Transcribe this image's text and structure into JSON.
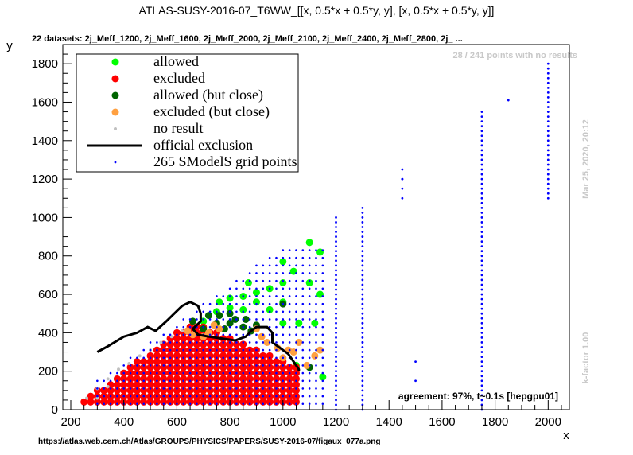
{
  "chart_data": {
    "type": "scatter",
    "title": "ATLAS-SUSY-2016-07_T6WW_[[x, 0.5*x + 0.5*y, y], [x, 0.5*x + 0.5*y, y]]",
    "subtitle": "22 datasets: 2j_Meff_1200, 2j_Meff_1600, 2j_Meff_2000, 2j_Meff_2100, 2j_Meff_2400, 2j_Meff_2800, 2j_ ...",
    "xlabel": "x",
    "ylabel": "y",
    "xlim": [
      170,
      2080
    ],
    "ylim": [
      0,
      1900
    ],
    "xticks": [
      200,
      400,
      600,
      800,
      1000,
      1200,
      1400,
      1600,
      1800,
      2000
    ],
    "yticks": [
      0,
      200,
      400,
      600,
      800,
      1000,
      1200,
      1400,
      1600,
      1800
    ],
    "no_result_note": "28 / 241 points with no results",
    "timestamp": "Mar 25, 2020, 20:12",
    "kfactor": "k-factor 1.00",
    "agreement": "agreement: 97%, t~0.1s [hepgpu01]",
    "source_url": "https://atlas.web.cern.ch/Atlas/GROUPS/PHYSICS/PAPERS/SUSY-2016-07/figaux_077a.png",
    "legend": [
      {
        "label": "allowed",
        "color": "#00ff00",
        "marker": "dot"
      },
      {
        "label": "excluded",
        "color": "#ff0000",
        "marker": "dot"
      },
      {
        "label": "allowed (but close)",
        "color": "#006400",
        "marker": "dot"
      },
      {
        "label": "excluded (but close)",
        "color": "#ffa040",
        "marker": "dot"
      },
      {
        "label": "no result",
        "color": "#c0c0c0",
        "marker": "smalldot"
      },
      {
        "label": "official exclusion",
        "color": "#000000",
        "marker": "line"
      },
      {
        "label": "265 SModelS grid points",
        "color": "#0000ff",
        "marker": "tiny"
      }
    ],
    "series": [
      {
        "name": "allowed",
        "color": "#00ff00",
        "points": [
          [
            700,
            460
          ],
          [
            750,
            510
          ],
          [
            760,
            560
          ],
          [
            800,
            530
          ],
          [
            800,
            580
          ],
          [
            850,
            520
          ],
          [
            850,
            590
          ],
          [
            870,
            660
          ],
          [
            900,
            560
          ],
          [
            900,
            610
          ],
          [
            950,
            630
          ],
          [
            1000,
            770
          ],
          [
            1000,
            660
          ],
          [
            1000,
            560
          ],
          [
            1040,
            720
          ],
          [
            1060,
            450
          ],
          [
            1100,
            870
          ],
          [
            1100,
            660
          ],
          [
            1120,
            450
          ],
          [
            1140,
            820
          ],
          [
            1140,
            600
          ],
          [
            1150,
            170
          ],
          [
            1050,
            230
          ],
          [
            1000,
            450
          ],
          [
            950,
            520
          ]
        ]
      },
      {
        "name": "excluded",
        "color": "#ff0000",
        "points": []
      },
      {
        "name": "allowed (but close)",
        "color": "#006400",
        "points": [
          [
            660,
            460
          ],
          [
            700,
            420
          ],
          [
            720,
            490
          ],
          [
            750,
            450
          ],
          [
            760,
            490
          ],
          [
            780,
            420
          ],
          [
            800,
            450
          ],
          [
            800,
            500
          ],
          [
            820,
            470
          ],
          [
            850,
            430
          ],
          [
            860,
            470
          ],
          [
            880,
            410
          ],
          [
            900,
            440
          ],
          [
            1000,
            550
          ],
          [
            1100,
            220
          ]
        ]
      },
      {
        "name": "excluded (but close)",
        "color": "#ffa040",
        "points": [
          [
            640,
            410
          ],
          [
            660,
            390
          ],
          [
            700,
            380
          ],
          [
            720,
            400
          ],
          [
            740,
            440
          ],
          [
            760,
            420
          ],
          [
            900,
            420
          ],
          [
            920,
            380
          ],
          [
            940,
            350
          ],
          [
            980,
            320
          ],
          [
            1000,
            270
          ],
          [
            1020,
            310
          ],
          [
            1040,
            300
          ],
          [
            1060,
            350
          ],
          [
            1090,
            230
          ],
          [
            1120,
            280
          ],
          [
            1140,
            310
          ]
        ]
      },
      {
        "name": "no result",
        "color": "#c0c0c0",
        "points": [
          [
            260,
            60
          ],
          [
            300,
            110
          ],
          [
            300,
            60
          ],
          [
            340,
            120
          ],
          [
            340,
            160
          ],
          [
            380,
            210
          ],
          [
            420,
            240
          ],
          [
            460,
            280
          ],
          [
            500,
            310
          ],
          [
            540,
            350
          ],
          [
            580,
            380
          ],
          [
            620,
            410
          ]
        ]
      },
      {
        "name": "official exclusion",
        "color": "#000000",
        "points": [
          [
            300,
            300
          ],
          [
            340,
            330
          ],
          [
            400,
            380
          ],
          [
            450,
            400
          ],
          [
            490,
            430
          ],
          [
            520,
            410
          ],
          [
            560,
            460
          ],
          [
            590,
            500
          ],
          [
            620,
            540
          ],
          [
            650,
            560
          ],
          [
            680,
            540
          ],
          [
            690,
            500
          ],
          [
            690,
            460
          ],
          [
            660,
            420
          ],
          [
            680,
            390
          ],
          [
            720,
            380
          ],
          [
            770,
            370
          ],
          [
            820,
            360
          ],
          [
            860,
            380
          ],
          [
            880,
            410
          ],
          [
            900,
            430
          ],
          [
            940,
            430
          ],
          [
            960,
            400
          ],
          [
            960,
            350
          ],
          [
            990,
            320
          ],
          [
            1020,
            290
          ],
          [
            1040,
            250
          ],
          [
            1060,
            210
          ],
          [
            1060,
            200
          ]
        ]
      }
    ],
    "grid_columns": [
      {
        "x": 1200,
        "y_min": 0,
        "y_max": 1000,
        "step": 25
      },
      {
        "x": 1300,
        "y_min": 0,
        "y_max": 1050,
        "step": 25
      },
      {
        "x": 1450,
        "y_min": 1100,
        "y_max": 1250,
        "step": 50
      },
      {
        "x": 1500,
        "y_min": 150,
        "y_max": 250,
        "step": 100
      },
      {
        "x": 1750,
        "y_min": 0,
        "y_max": 1550,
        "step": 25
      },
      {
        "x": 2000,
        "y_min": 1100,
        "y_max": 1800,
        "step": 25
      }
    ],
    "grid_extra_points": [
      [
        1850,
        1610
      ],
      [
        1450,
        1200
      ],
      [
        1300,
        450
      ],
      [
        1300,
        350
      ],
      [
        1300,
        250
      ]
    ]
  }
}
